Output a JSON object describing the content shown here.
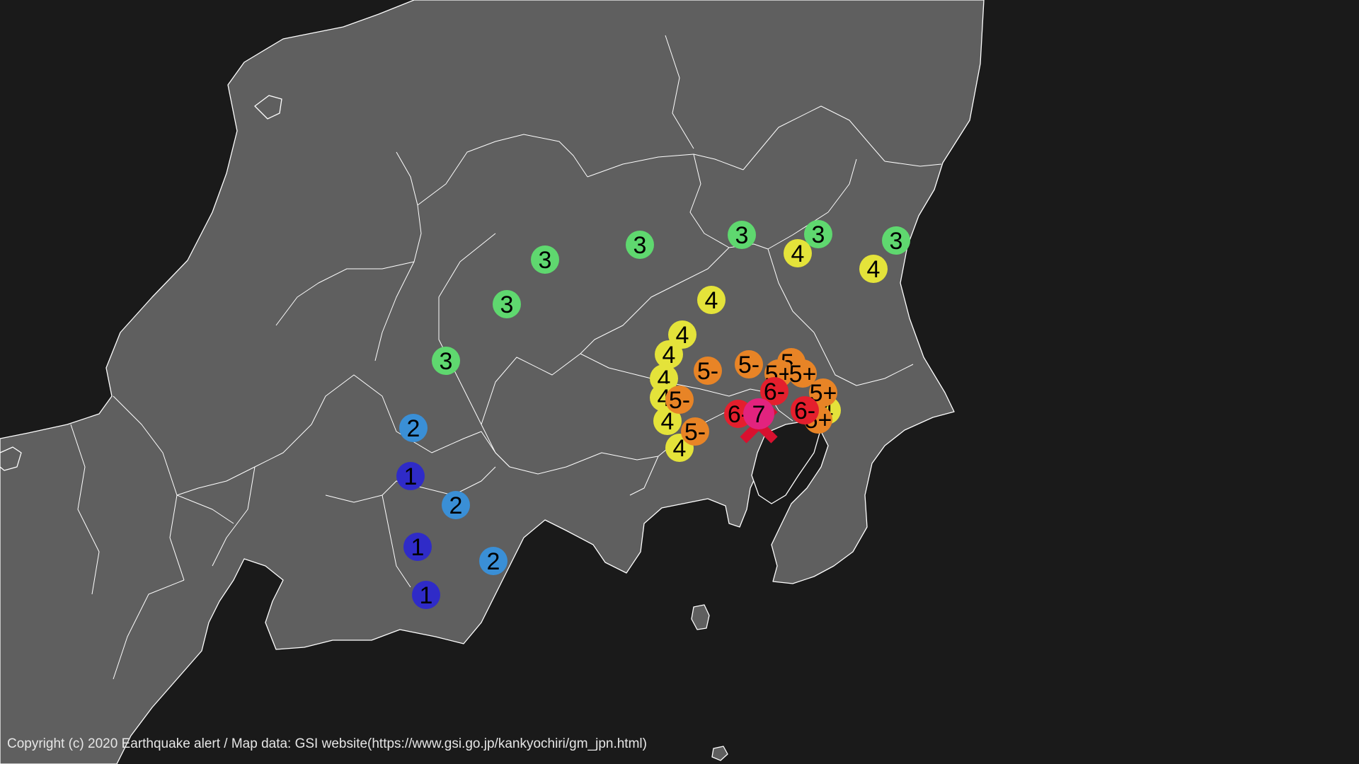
{
  "copyright": "Copyright (c) 2020 Earthquake alert / Map data: GSI website(https://www.gsi.go.jp/kankyochiri/gm_jpn.html)",
  "colors": {
    "background": "#1a1a1a",
    "land": "#5f5f5f",
    "border": "#ffffff",
    "epicenter": "#d8102f",
    "intensity": {
      "1": "#2f2bc8",
      "2": "#3a8fd6",
      "3": "#5fd86f",
      "4": "#e4e33a",
      "5-": "#e88426",
      "5+": "#e88426",
      "6-": "#e41f2d",
      "6+": "#e41f2d",
      "7": "#e2237e"
    }
  },
  "icons": {
    "epicenter": "x-mark-icon"
  },
  "stations": [
    {
      "label": "3"
    },
    {
      "label": "3"
    },
    {
      "label": "3"
    },
    {
      "label": "3"
    },
    {
      "label": "3"
    },
    {
      "label": "3"
    },
    {
      "label": "3"
    },
    {
      "label": "4"
    },
    {
      "label": "4"
    },
    {
      "label": "4"
    },
    {
      "label": "4"
    },
    {
      "label": "4"
    },
    {
      "label": "4"
    },
    {
      "label": "4"
    },
    {
      "label": "4"
    },
    {
      "label": "4"
    },
    {
      "label": "4"
    },
    {
      "label": "2"
    },
    {
      "label": "2"
    },
    {
      "label": "2"
    },
    {
      "label": "1"
    },
    {
      "label": "1"
    },
    {
      "label": "1"
    },
    {
      "label": "5-"
    },
    {
      "label": "5-"
    },
    {
      "label": "5-"
    },
    {
      "label": "5-"
    },
    {
      "label": "5-"
    },
    {
      "label": "5+"
    },
    {
      "label": "5+"
    },
    {
      "label": "5+"
    },
    {
      "label": "5+"
    },
    {
      "label": "6-"
    },
    {
      "label": "6-"
    },
    {
      "label": "6-"
    },
    {
      "label": "7"
    }
  ]
}
